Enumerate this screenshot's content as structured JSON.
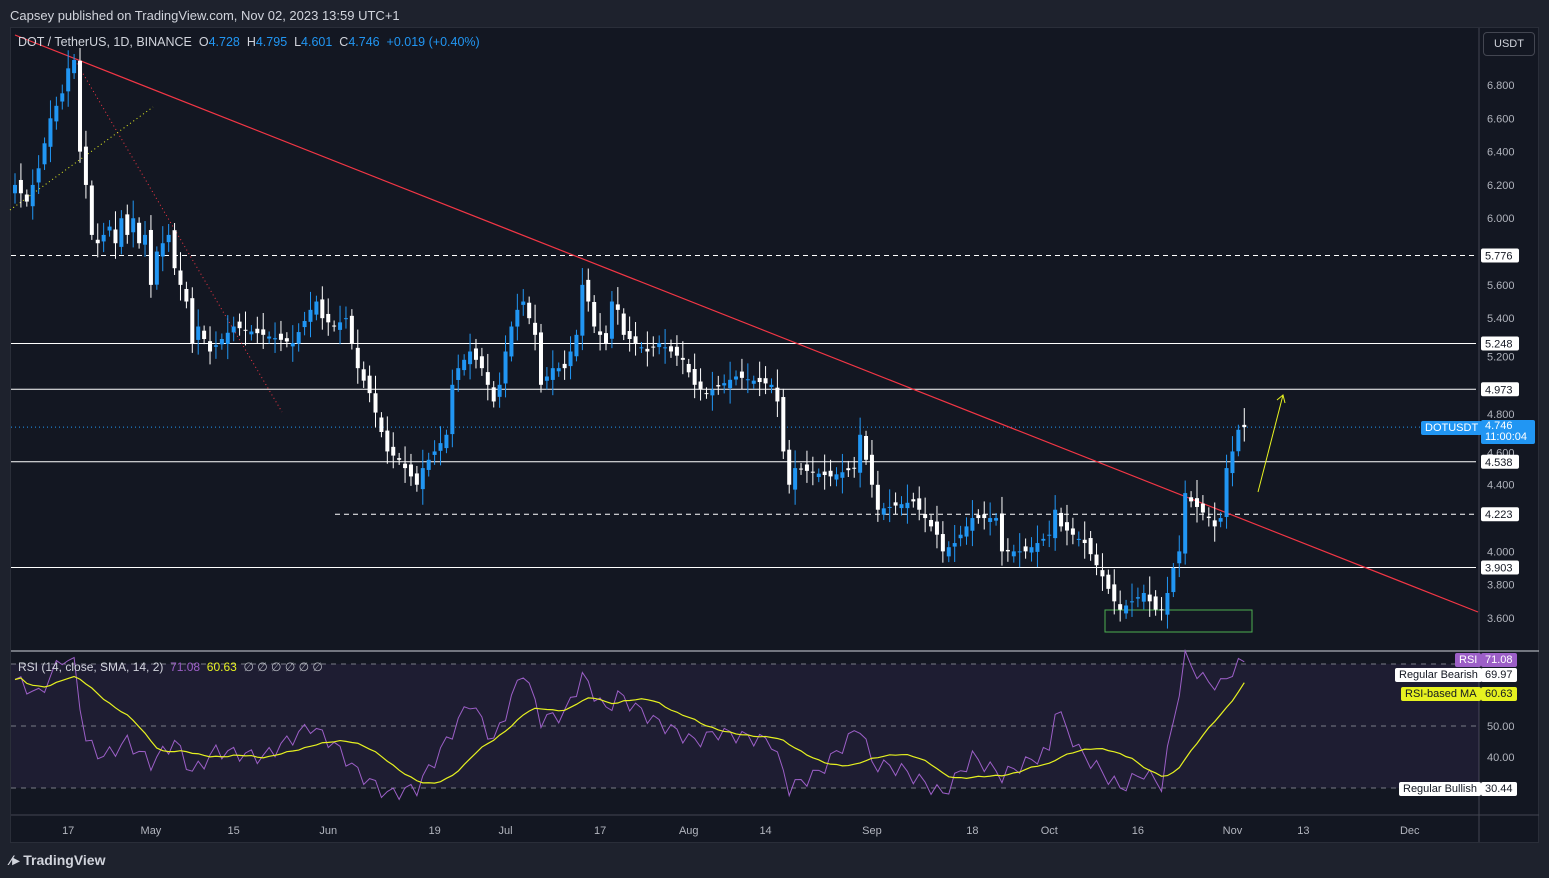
{
  "header": {
    "published": "Capsey published on TradingView.com, Nov 02, 2023 13:59 UTC+1"
  },
  "legend": {
    "symbol": "DOT / TetherUS, 1D, BINANCE",
    "o_label": "O",
    "o": "4.728",
    "h_label": "H",
    "h": "4.795",
    "l_label": "L",
    "l": "4.601",
    "c_label": "C",
    "c": "4.746",
    "change": "+0.019 (+0.40%)"
  },
  "currency_button": "USDT",
  "rsi_legend": {
    "title": "RSI (14, close, SMA, 14, 2)",
    "rsi": "71.08",
    "ma": "60.63",
    "na": "∅ ∅ ∅ ∅ ∅ ∅"
  },
  "price_tag": {
    "symbol": "DOTUSDT",
    "price": "4.746",
    "countdown": "11:00:04"
  },
  "rsi_tags": {
    "rsi_label": "RSI",
    "rsi": "71.08",
    "bearish_label": "Regular Bearish",
    "bearish": "69.97",
    "ma_label": "RSI-based MA",
    "ma": "60.63",
    "bullish_label": "Regular Bullish",
    "bullish": "30.44"
  },
  "brand": "TradingView",
  "colors": {
    "up": "#2196f3",
    "down": "#ffffff",
    "trend": "#f23645",
    "rsi": "#9c5fc7",
    "rsi_ma": "#e6f120",
    "box": "#4caf50"
  },
  "chart_data": {
    "type": "candlestick",
    "ylim": [
      3.5,
      7.05
    ],
    "price_ticks": [
      "6.800",
      "6.600",
      "6.400",
      "6.200",
      "6.000",
      "5.600",
      "5.400",
      "5.200",
      "4.800",
      "4.600",
      "4.400",
      "4.000",
      "3.800",
      "3.600"
    ],
    "levels": [
      {
        "value": "5.776",
        "style": "dashed"
      },
      {
        "value": "5.248",
        "style": "solid"
      },
      {
        "value": "4.973",
        "style": "solid"
      },
      {
        "value": "4.538",
        "style": "solid"
      },
      {
        "value": "4.223",
        "style": "dashed"
      },
      {
        "value": "3.903",
        "style": "solid"
      }
    ],
    "x_ticks": [
      "17",
      "May",
      "15",
      "Jun",
      "19",
      "Jul",
      "17",
      "Aug",
      "14",
      "Sep",
      "18",
      "Oct",
      "16",
      "Nov",
      "13",
      "Dec"
    ],
    "close_keypoints": [
      [
        0,
        6.2
      ],
      [
        2,
        6.1
      ],
      [
        4,
        6.3
      ],
      [
        6,
        6.6
      ],
      [
        8,
        6.75
      ],
      [
        9,
        6.9
      ],
      [
        10,
        6.95
      ],
      [
        11,
        6.4
      ],
      [
        12,
        6.2
      ],
      [
        13,
        5.9
      ],
      [
        14,
        5.85
      ],
      [
        16,
        5.95
      ],
      [
        17,
        5.85
      ],
      [
        18,
        6.0
      ],
      [
        19,
        5.9
      ],
      [
        20,
        6.0
      ],
      [
        21,
        5.85
      ],
      [
        22,
        5.9
      ],
      [
        23,
        5.6
      ],
      [
        24,
        5.8
      ],
      [
        26,
        5.9
      ],
      [
        27,
        5.7
      ],
      [
        28,
        5.6
      ],
      [
        29,
        5.5
      ],
      [
        30,
        5.25
      ],
      [
        31,
        5.35
      ],
      [
        33,
        5.2
      ],
      [
        37,
        5.35
      ],
      [
        42,
        5.3
      ],
      [
        47,
        5.25
      ],
      [
        50,
        5.45
      ],
      [
        51,
        5.5
      ],
      [
        52,
        5.4
      ],
      [
        54,
        5.35
      ],
      [
        56,
        5.4
      ],
      [
        58,
        5.1
      ],
      [
        60,
        4.95
      ],
      [
        63,
        4.6
      ],
      [
        65,
        4.55
      ],
      [
        68,
        4.4
      ],
      [
        69,
        4.5
      ],
      [
        71,
        4.6
      ],
      [
        73,
        4.7
      ],
      [
        74,
        5.0
      ],
      [
        75,
        5.1
      ],
      [
        77,
        5.2
      ],
      [
        79,
        5.1
      ],
      [
        81,
        4.9
      ],
      [
        82,
        5.0
      ],
      [
        83,
        5.2
      ],
      [
        84,
        5.35
      ],
      [
        85,
        5.45
      ],
      [
        86,
        5.5
      ],
      [
        88,
        5.3
      ],
      [
        89,
        5.0
      ],
      [
        91,
        5.1
      ],
      [
        93,
        5.1
      ],
      [
        95,
        5.3
      ],
      [
        96,
        5.6
      ],
      [
        97,
        5.5
      ],
      [
        98,
        5.35
      ],
      [
        100,
        5.25
      ],
      [
        101,
        5.5
      ],
      [
        102,
        5.45
      ],
      [
        103,
        5.3
      ],
      [
        107,
        5.2
      ],
      [
        109,
        5.25
      ],
      [
        113,
        5.15
      ],
      [
        115,
        5.0
      ],
      [
        117,
        4.95
      ],
      [
        122,
        5.05
      ],
      [
        128,
        5.0
      ],
      [
        129,
        4.9
      ],
      [
        130,
        4.6
      ],
      [
        131,
        4.4
      ],
      [
        132,
        4.5
      ],
      [
        138,
        4.45
      ],
      [
        142,
        4.5
      ],
      [
        143,
        4.7
      ],
      [
        144,
        4.55
      ],
      [
        145,
        4.4
      ],
      [
        146,
        4.25
      ],
      [
        152,
        4.3
      ],
      [
        156,
        4.1
      ],
      [
        157,
        4.0
      ],
      [
        159,
        4.05
      ],
      [
        162,
        4.2
      ],
      [
        166,
        4.2
      ],
      [
        167,
        4.0
      ],
      [
        171,
        4.0
      ],
      [
        175,
        4.1
      ],
      [
        176,
        4.25
      ],
      [
        177,
        4.15
      ],
      [
        181,
        4.05
      ],
      [
        184,
        3.85
      ],
      [
        186,
        3.7
      ],
      [
        187,
        3.65
      ],
      [
        191,
        3.75
      ],
      [
        193,
        3.65
      ],
      [
        194,
        3.65
      ],
      [
        195,
        3.75
      ],
      [
        196,
        3.9
      ],
      [
        197,
        4.0
      ],
      [
        198,
        4.35
      ],
      [
        199,
        4.3
      ],
      [
        202,
        4.2
      ],
      [
        203,
        4.15
      ],
      [
        204,
        4.2
      ],
      [
        205,
        4.5
      ],
      [
        206,
        4.6
      ],
      [
        207,
        4.73
      ],
      [
        208,
        4.746
      ]
    ],
    "rsi": {
      "ylim": [
        20,
        80
      ],
      "ticks": [
        "50.00",
        "40.00"
      ],
      "bands": [
        70,
        50,
        30
      ],
      "keypoints": [
        [
          0,
          65
        ],
        [
          4,
          60
        ],
        [
          8,
          72
        ],
        [
          10,
          70
        ],
        [
          12,
          45
        ],
        [
          15,
          40
        ],
        [
          19,
          45
        ],
        [
          23,
          38
        ],
        [
          27,
          45
        ],
        [
          30,
          35
        ],
        [
          34,
          42
        ],
        [
          42,
          40
        ],
        [
          50,
          50
        ],
        [
          54,
          44
        ],
        [
          58,
          35
        ],
        [
          63,
          28
        ],
        [
          68,
          30
        ],
        [
          73,
          45
        ],
        [
          77,
          58
        ],
        [
          81,
          45
        ],
        [
          86,
          68
        ],
        [
          89,
          52
        ],
        [
          93,
          54
        ],
        [
          96,
          66
        ],
        [
          100,
          55
        ],
        [
          102,
          60
        ],
        [
          108,
          52
        ],
        [
          115,
          45
        ],
        [
          119,
          48
        ],
        [
          128,
          45
        ],
        [
          131,
          30
        ],
        [
          136,
          35
        ],
        [
          143,
          50
        ],
        [
          145,
          38
        ],
        [
          150,
          36
        ],
        [
          157,
          28
        ],
        [
          162,
          40
        ],
        [
          167,
          34
        ],
        [
          175,
          42
        ],
        [
          176,
          56
        ],
        [
          180,
          42
        ],
        [
          184,
          35
        ],
        [
          187,
          30
        ],
        [
          191,
          35
        ],
        [
          194,
          31
        ],
        [
          198,
          72
        ],
        [
          201,
          65
        ],
        [
          204,
          63
        ],
        [
          206,
          68
        ],
        [
          208,
          71
        ]
      ]
    }
  }
}
